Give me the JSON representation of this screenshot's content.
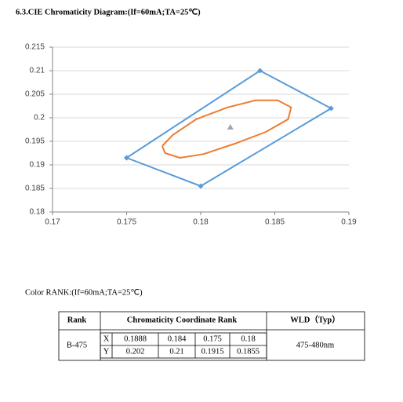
{
  "header": {
    "title": "6.3.CIE Chromaticity Diagram:(If=60mA;TA=25℃)"
  },
  "chart_data": {
    "type": "line",
    "xlim": [
      0.17,
      0.19
    ],
    "xticks": [
      0.17,
      0.175,
      0.18,
      0.185,
      0.19
    ],
    "ylim": [
      0.18,
      0.215
    ],
    "yticks": [
      0.215,
      0.21,
      0.205,
      0.2,
      0.195,
      0.19,
      0.185,
      0.18
    ],
    "grid": true,
    "series": [
      {
        "color": "#5b9bd5",
        "marker": "diamond",
        "x": [
          0.175,
          0.184,
          0.1888,
          0.18,
          0.175
        ],
        "values": [
          0.1915,
          0.21,
          0.202,
          0.1855,
          0.1915
        ]
      },
      {
        "color": "#ed7d31",
        "marker": "none",
        "x": [
          0.1774,
          0.1781,
          0.1797,
          0.1818,
          0.1837,
          0.1852,
          0.1861,
          0.1859,
          0.1844,
          0.1823,
          0.1802,
          0.1786,
          0.1776,
          0.1774
        ],
        "values": [
          0.194,
          0.1963,
          0.1997,
          0.2022,
          0.2037,
          0.2037,
          0.2022,
          0.1997,
          0.197,
          0.1945,
          0.1923,
          0.1915,
          0.1925,
          0.194
        ]
      },
      {
        "color": "#a5a5a5",
        "marker": "triangle",
        "x": [
          0.182
        ],
        "values": [
          0.198
        ]
      }
    ]
  },
  "subtitle": "Color RANK:(If=60mA;TA=25℃)",
  "table": {
    "header": [
      "Rank",
      "Chromaticity Coordinate Rank",
      "WLD（Typ）"
    ],
    "rank": "B-475",
    "rows": [
      [
        "X",
        "0.1888",
        "0.184",
        "0.175",
        "0.18"
      ],
      [
        "Y",
        "0.202",
        "0.21",
        "0.1915",
        "0.1855"
      ]
    ],
    "wld": "475-480nm"
  }
}
